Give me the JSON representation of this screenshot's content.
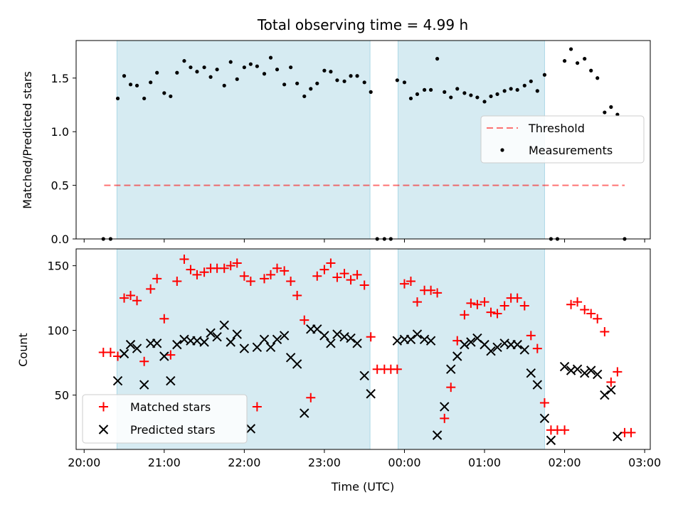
{
  "chart_data": {
    "type": "scatter",
    "title": "Total observing time = 4.99 h",
    "xlabel": "Time (UTC)",
    "x_ticks": [
      "20:00",
      "21:00",
      "22:00",
      "23:00",
      "00:00",
      "01:00",
      "02:00",
      "03:00"
    ],
    "xlim": [
      -0.1,
      7.07
    ],
    "colors": {
      "shade": "#add8e6",
      "threshold": "#ff0000",
      "matched": "#ff0000",
      "predicted": "#000000",
      "measurement": "#000000"
    },
    "shaded_intervals": [
      [
        0.41,
        3.57
      ],
      [
        3.92,
        5.75
      ]
    ],
    "top": {
      "ylabel": "Matched/Predicted stars",
      "ylim": [
        0,
        1.85
      ],
      "y_ticks": [
        "0.0",
        "0.5",
        "1.0",
        "1.5"
      ],
      "threshold": {
        "name": "Threshold",
        "y": 0.5,
        "x_range": [
          0.25,
          6.75
        ]
      },
      "legend": [
        "Threshold",
        "Measurements"
      ],
      "legend_loc": "center-right",
      "measurements": {
        "name": "Measurements",
        "points": [
          [
            0.24,
            0
          ],
          [
            0.33,
            0
          ],
          [
            0.42,
            1.31
          ],
          [
            0.5,
            1.52
          ],
          [
            0.58,
            1.44
          ],
          [
            0.66,
            1.43
          ],
          [
            0.75,
            1.31
          ],
          [
            0.83,
            1.46
          ],
          [
            0.91,
            1.55
          ],
          [
            1.0,
            1.36
          ],
          [
            1.08,
            1.33
          ],
          [
            1.16,
            1.55
          ],
          [
            1.25,
            1.66
          ],
          [
            1.33,
            1.6
          ],
          [
            1.41,
            1.56
          ],
          [
            1.5,
            1.6
          ],
          [
            1.58,
            1.51
          ],
          [
            1.66,
            1.58
          ],
          [
            1.75,
            1.43
          ],
          [
            1.83,
            1.65
          ],
          [
            1.91,
            1.49
          ],
          [
            2.0,
            1.6
          ],
          [
            2.08,
            1.63
          ],
          [
            2.16,
            1.61
          ],
          [
            2.25,
            1.54
          ],
          [
            2.33,
            1.69
          ],
          [
            2.41,
            1.58
          ],
          [
            2.5,
            1.44
          ],
          [
            2.58,
            1.6
          ],
          [
            2.66,
            1.45
          ],
          [
            2.75,
            1.33
          ],
          [
            2.83,
            1.4
          ],
          [
            2.91,
            1.45
          ],
          [
            3.0,
            1.57
          ],
          [
            3.08,
            1.56
          ],
          [
            3.16,
            1.48
          ],
          [
            3.25,
            1.47
          ],
          [
            3.33,
            1.52
          ],
          [
            3.41,
            1.52
          ],
          [
            3.5,
            1.46
          ],
          [
            3.58,
            1.37
          ],
          [
            3.66,
            0
          ],
          [
            3.75,
            0
          ],
          [
            3.83,
            0
          ],
          [
            3.91,
            1.48
          ],
          [
            4.0,
            1.46
          ],
          [
            4.08,
            1.31
          ],
          [
            4.16,
            1.35
          ],
          [
            4.25,
            1.39
          ],
          [
            4.33,
            1.39
          ],
          [
            4.41,
            1.68
          ],
          [
            4.5,
            1.37
          ],
          [
            4.58,
            1.32
          ],
          [
            4.66,
            1.4
          ],
          [
            4.75,
            1.36
          ],
          [
            4.83,
            1.34
          ],
          [
            4.91,
            1.32
          ],
          [
            5.0,
            1.28
          ],
          [
            5.08,
            1.33
          ],
          [
            5.16,
            1.35
          ],
          [
            5.25,
            1.38
          ],
          [
            5.33,
            1.4
          ],
          [
            5.41,
            1.39
          ],
          [
            5.5,
            1.43
          ],
          [
            5.58,
            1.47
          ],
          [
            5.66,
            1.38
          ],
          [
            5.75,
            1.53
          ],
          [
            5.83,
            0
          ],
          [
            5.91,
            0
          ],
          [
            6.0,
            1.66
          ],
          [
            6.08,
            1.77
          ],
          [
            6.16,
            1.64
          ],
          [
            6.25,
            1.68
          ],
          [
            6.33,
            1.57
          ],
          [
            6.41,
            1.5
          ],
          [
            6.5,
            1.18
          ],
          [
            6.58,
            1.23
          ],
          [
            6.66,
            1.16
          ],
          [
            6.75,
            0
          ]
        ]
      }
    },
    "bottom": {
      "ylabel": "Count",
      "ylim": [
        8,
        163
      ],
      "y_ticks": [
        "50",
        "100",
        "150"
      ],
      "legend": [
        "Matched stars",
        "Predicted stars"
      ],
      "legend_loc": "lower-left",
      "series": [
        {
          "name": "Matched stars",
          "marker": "+",
          "points": [
            [
              0.24,
              83
            ],
            [
              0.33,
              83
            ],
            [
              0.42,
              80
            ],
            [
              0.5,
              125
            ],
            [
              0.58,
              127
            ],
            [
              0.66,
              123
            ],
            [
              0.75,
              76
            ],
            [
              0.83,
              132
            ],
            [
              0.91,
              140
            ],
            [
              1.0,
              109
            ],
            [
              1.08,
              81
            ],
            [
              1.16,
              138
            ],
            [
              1.25,
              155
            ],
            [
              1.33,
              147
            ],
            [
              1.41,
              143
            ],
            [
              1.5,
              145
            ],
            [
              1.58,
              148
            ],
            [
              1.66,
              148
            ],
            [
              1.75,
              148
            ],
            [
              1.83,
              150
            ],
            [
              1.91,
              152
            ],
            [
              2.0,
              142
            ],
            [
              2.08,
              138
            ],
            [
              2.16,
              41
            ],
            [
              2.25,
              140
            ],
            [
              2.33,
              143
            ],
            [
              2.41,
              148
            ],
            [
              2.5,
              146
            ],
            [
              2.58,
              138
            ],
            [
              2.66,
              127
            ],
            [
              2.75,
              108
            ],
            [
              2.83,
              48
            ],
            [
              2.91,
              142
            ],
            [
              3.0,
              147
            ],
            [
              3.08,
              152
            ],
            [
              3.16,
              141
            ],
            [
              3.25,
              144
            ],
            [
              3.33,
              139
            ],
            [
              3.41,
              143
            ],
            [
              3.5,
              135
            ],
            [
              3.58,
              95
            ],
            [
              3.66,
              70
            ],
            [
              3.75,
              70
            ],
            [
              3.83,
              70
            ],
            [
              3.91,
              70
            ],
            [
              4.0,
              136
            ],
            [
              4.08,
              138
            ],
            [
              4.16,
              122
            ],
            [
              4.25,
              131
            ],
            [
              4.33,
              131
            ],
            [
              4.41,
              129
            ],
            [
              4.5,
              32
            ],
            [
              4.58,
              56
            ],
            [
              4.66,
              92
            ],
            [
              4.75,
              112
            ],
            [
              4.83,
              121
            ],
            [
              4.91,
              120
            ],
            [
              5.0,
              122
            ],
            [
              5.08,
              114
            ],
            [
              5.16,
              113
            ],
            [
              5.25,
              119
            ],
            [
              5.33,
              125
            ],
            [
              5.41,
              125
            ],
            [
              5.5,
              119
            ],
            [
              5.58,
              96
            ],
            [
              5.66,
              86
            ],
            [
              5.75,
              44
            ],
            [
              5.83,
              23
            ],
            [
              5.91,
              23
            ],
            [
              6.0,
              23
            ],
            [
              6.08,
              120
            ],
            [
              6.16,
              122
            ],
            [
              6.25,
              116
            ],
            [
              6.33,
              113
            ],
            [
              6.41,
              109
            ],
            [
              6.5,
              99
            ],
            [
              6.58,
              60
            ],
            [
              6.66,
              68
            ],
            [
              6.75,
              21
            ],
            [
              6.83,
              21
            ]
          ]
        },
        {
          "name": "Predicted stars",
          "marker": "x",
          "points": [
            [
              0.42,
              61
            ],
            [
              0.5,
              82
            ],
            [
              0.58,
              89
            ],
            [
              0.66,
              86
            ],
            [
              0.75,
              58
            ],
            [
              0.83,
              90
            ],
            [
              0.91,
              90
            ],
            [
              1.0,
              80
            ],
            [
              1.08,
              61
            ],
            [
              1.16,
              89
            ],
            [
              1.25,
              93
            ],
            [
              1.33,
              92
            ],
            [
              1.41,
              92
            ],
            [
              1.5,
              91
            ],
            [
              1.58,
              98
            ],
            [
              1.66,
              95
            ],
            [
              1.75,
              104
            ],
            [
              1.83,
              91
            ],
            [
              1.91,
              97
            ],
            [
              2.0,
              86
            ],
            [
              2.08,
              24
            ],
            [
              2.16,
              87
            ],
            [
              2.25,
              93
            ],
            [
              2.33,
              87
            ],
            [
              2.41,
              93
            ],
            [
              2.5,
              96
            ],
            [
              2.58,
              79
            ],
            [
              2.66,
              74
            ],
            [
              2.75,
              36
            ],
            [
              2.83,
              101
            ],
            [
              2.91,
              101
            ],
            [
              3.0,
              96
            ],
            [
              3.08,
              90
            ],
            [
              3.16,
              97
            ],
            [
              3.25,
              95
            ],
            [
              3.33,
              94
            ],
            [
              3.41,
              90
            ],
            [
              3.5,
              65
            ],
            [
              3.58,
              51
            ],
            [
              3.91,
              92
            ],
            [
              4.0,
              93
            ],
            [
              4.08,
              93
            ],
            [
              4.16,
              97
            ],
            [
              4.25,
              93
            ],
            [
              4.33,
              92
            ],
            [
              4.41,
              19
            ],
            [
              4.5,
              41
            ],
            [
              4.58,
              70
            ],
            [
              4.66,
              80
            ],
            [
              4.75,
              89
            ],
            [
              4.83,
              91
            ],
            [
              4.91,
              94
            ],
            [
              5.0,
              89
            ],
            [
              5.08,
              84
            ],
            [
              5.16,
              87
            ],
            [
              5.25,
              90
            ],
            [
              5.33,
              89
            ],
            [
              5.41,
              89
            ],
            [
              5.5,
              85
            ],
            [
              5.58,
              67
            ],
            [
              5.66,
              58
            ],
            [
              5.75,
              32
            ],
            [
              5.83,
              15
            ],
            [
              6.0,
              72
            ],
            [
              6.08,
              69
            ],
            [
              6.16,
              70
            ],
            [
              6.25,
              67
            ],
            [
              6.33,
              69
            ],
            [
              6.41,
              66
            ],
            [
              6.5,
              50
            ],
            [
              6.58,
              54
            ],
            [
              6.66,
              18
            ]
          ]
        }
      ]
    }
  }
}
